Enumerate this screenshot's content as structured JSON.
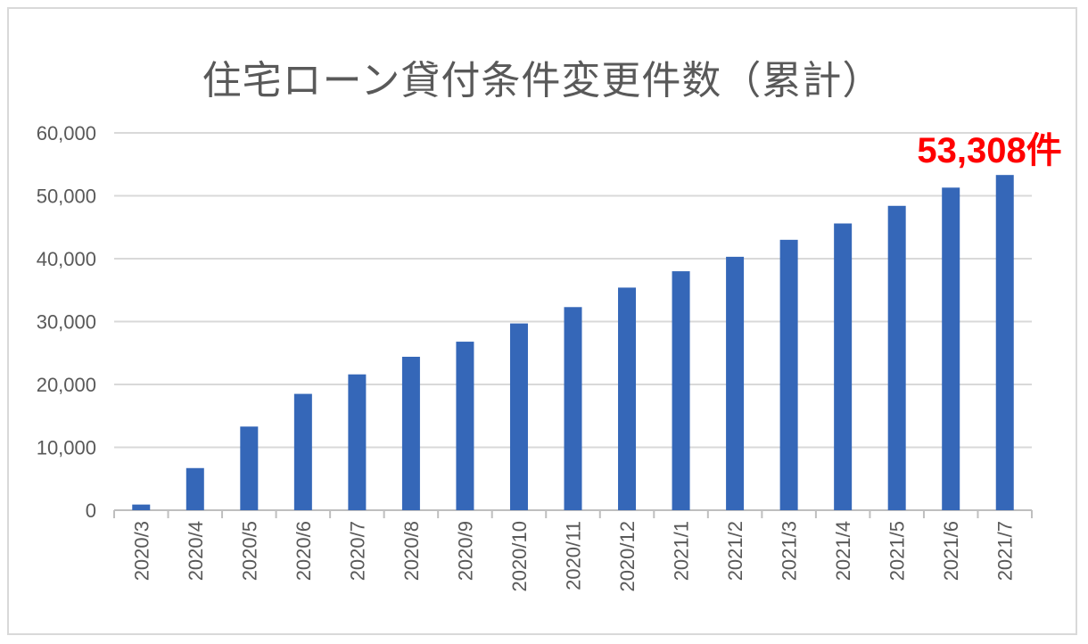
{
  "chart_data": {
    "type": "bar",
    "title": "住宅ローン貸付条件変更件数（累計）",
    "categories": [
      "2020/3",
      "2020/4",
      "2020/5",
      "2020/6",
      "2020/7",
      "2020/8",
      "2020/9",
      "2020/10",
      "2020/11",
      "2020/12",
      "2021/1",
      "2021/2",
      "2021/3",
      "2021/4",
      "2021/5",
      "2021/6",
      "2021/7"
    ],
    "series": [
      {
        "values": [
          900,
          6700,
          13300,
          18500,
          21600,
          24400,
          26800,
          29700,
          32300,
          35400,
          38000,
          40300,
          43000,
          45600,
          48400,
          51300,
          53308
        ]
      }
    ],
    "ylim": [
      0,
      60000
    ],
    "yticks": [
      "0",
      "10,000",
      "20,000",
      "30,000",
      "40,000",
      "50,000",
      "60,000"
    ],
    "ytick_values": [
      0,
      10000,
      20000,
      30000,
      40000,
      50000,
      60000
    ],
    "grid": true,
    "bar_color": "#3567b8",
    "annotation": {
      "text": "53,308件",
      "category": "2021/7",
      "color": "#ff0000"
    }
  }
}
